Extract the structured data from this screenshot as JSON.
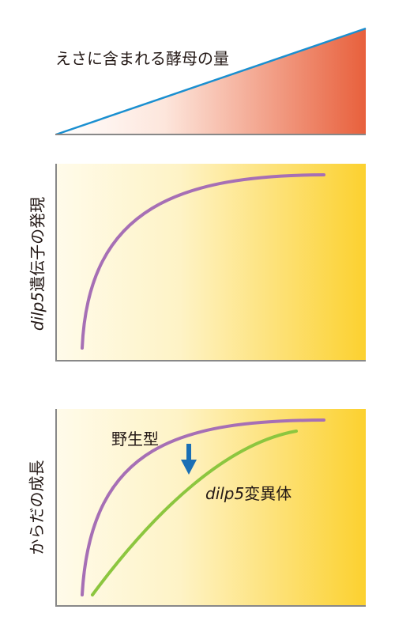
{
  "top_panel": {
    "title": "えさに含まれる酵母の量",
    "colors": {
      "line": "#1a8fd0",
      "gradient_start": "#ffffff",
      "gradient_end": "#e8603c",
      "axis": "#888888"
    }
  },
  "middle_panel": {
    "ylabel_italic": "dilp5",
    "ylabel_rest": "遺伝子の発現",
    "colors": {
      "curve": "#a66fb5",
      "bg_start": "#fffbe8",
      "bg_end": "#fcd23a",
      "axis": "#888888"
    }
  },
  "bottom_panel": {
    "ylabel": "からだの成長",
    "series_wild": "野生型",
    "series_mutant_italic": "dilp5",
    "series_mutant_rest": "変異体",
    "colors": {
      "wild": "#a66fb5",
      "mutant": "#8cc63f",
      "arrow": "#1a6fb5",
      "bg_start": "#fffbe8",
      "bg_end": "#fcd23a",
      "axis": "#888888"
    }
  }
}
